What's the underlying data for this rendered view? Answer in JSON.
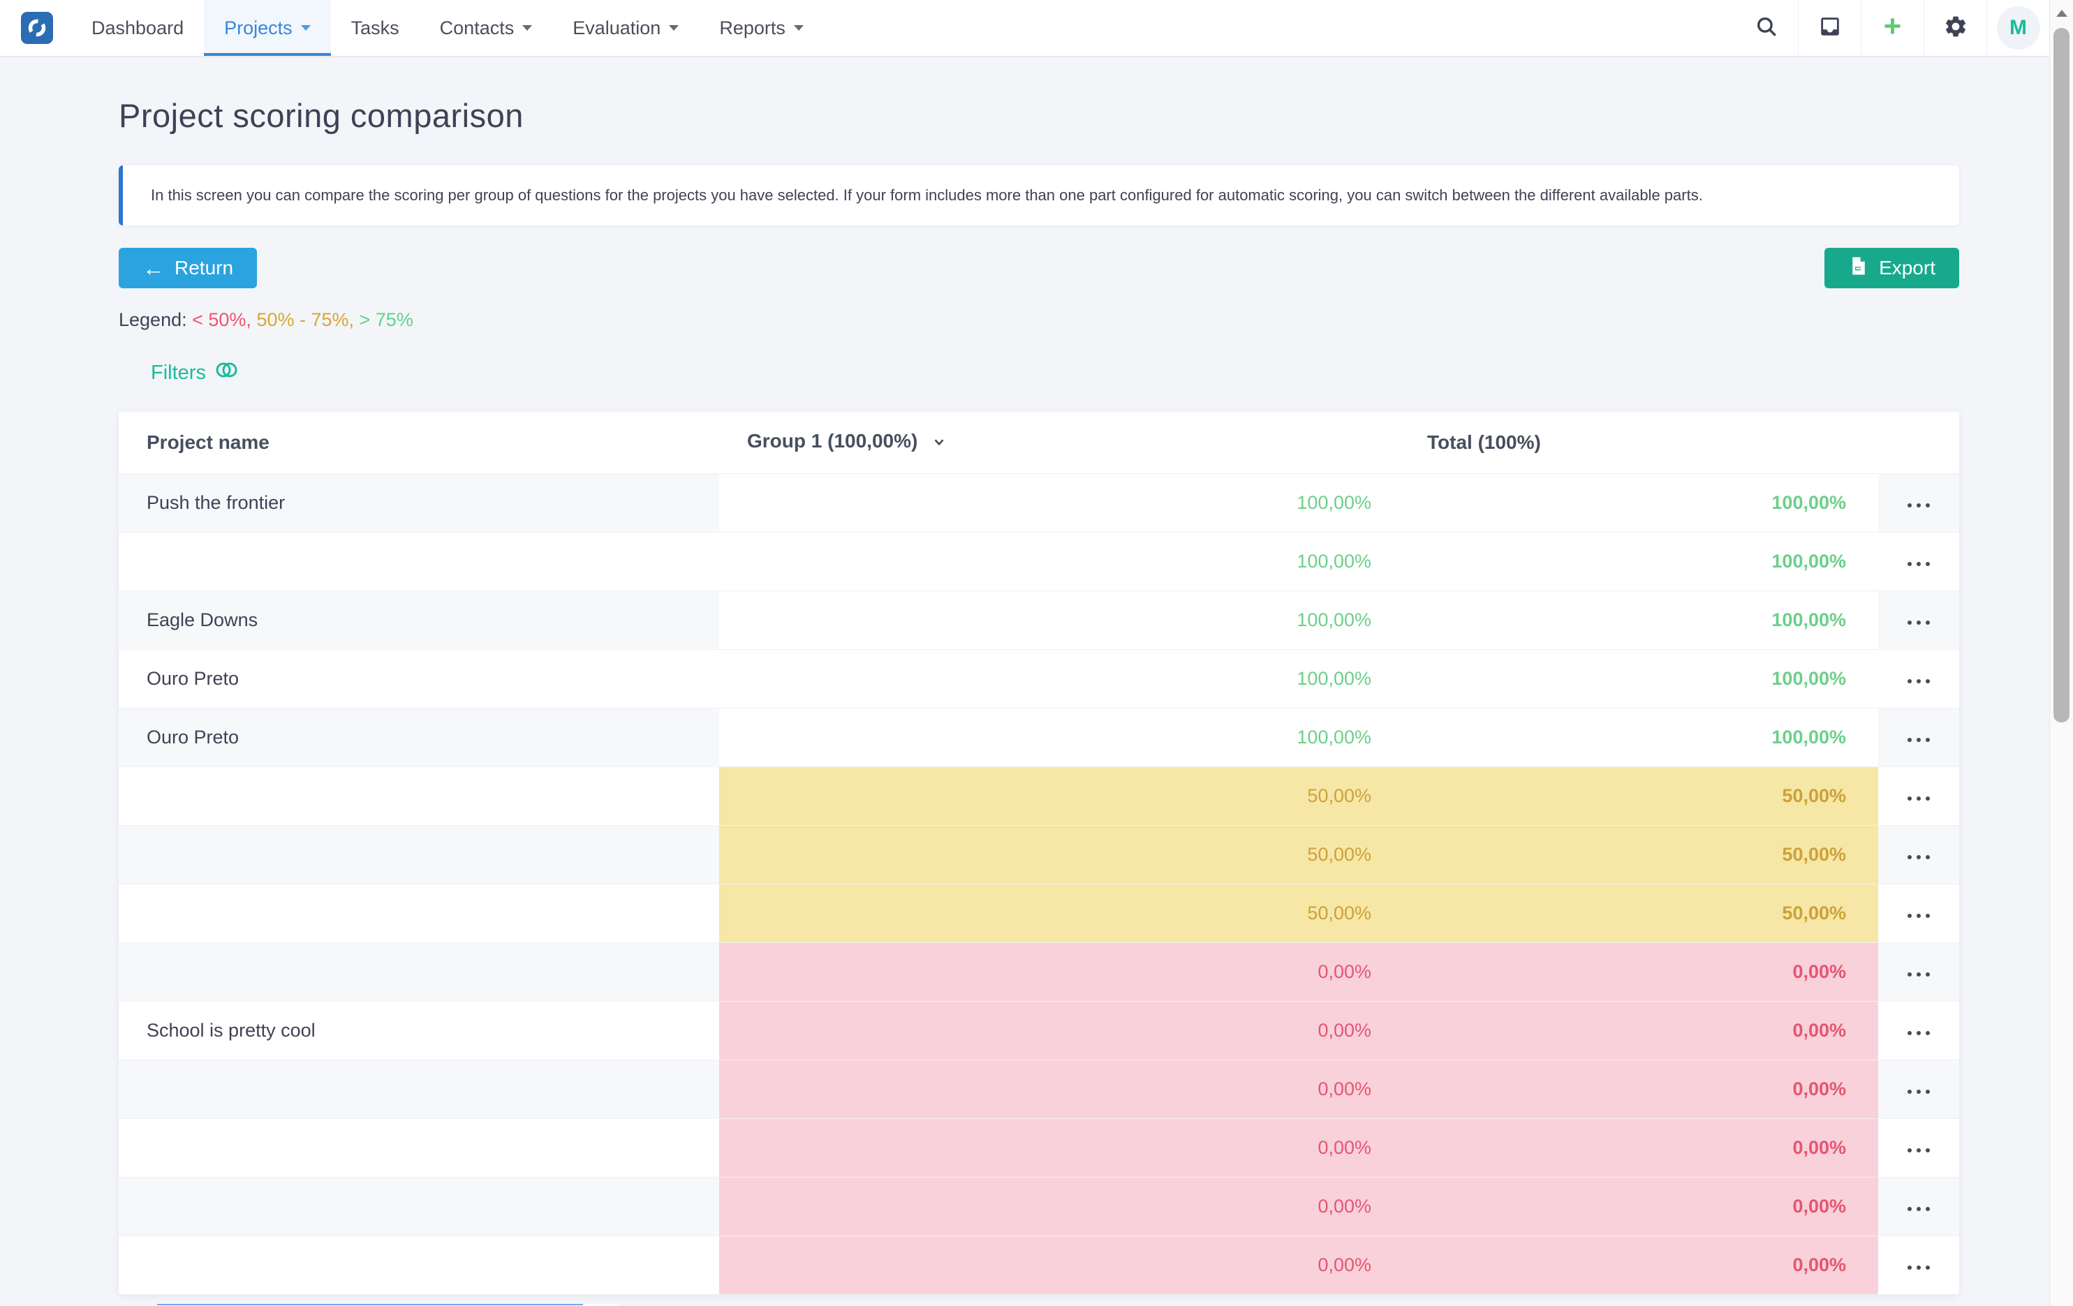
{
  "navbar": {
    "items": [
      {
        "label": "Dashboard",
        "caret": false,
        "active": false
      },
      {
        "label": "Projects",
        "caret": true,
        "active": true
      },
      {
        "label": "Tasks",
        "caret": false,
        "active": false
      },
      {
        "label": "Contacts",
        "caret": true,
        "active": false
      },
      {
        "label": "Evaluation",
        "caret": true,
        "active": false
      },
      {
        "label": "Reports",
        "caret": true,
        "active": false
      }
    ],
    "icons": [
      "search-icon",
      "inbox-icon",
      "add-icon",
      "settings-icon"
    ],
    "avatar_initial": "M"
  },
  "page": {
    "title": "Project scoring comparison",
    "info_text": "In this screen you can compare the scoring per group of questions for the projects you have selected. If your form includes more than one part configured for automatic scoring, you can switch between the different available parts.",
    "return_label": "Return",
    "export_label": "Export",
    "legend_label": "Legend:",
    "legend_items": [
      {
        "text": "< 50%",
        "color": "#f0536b"
      },
      {
        "text": "50% - 75%",
        "color": "#d9a730"
      },
      {
        "text": "> 75%",
        "color": "#5fd38c"
      }
    ],
    "filters_label": "Filters"
  },
  "table": {
    "headers": {
      "name": "Project name",
      "group": "Group 1 (100,00%)",
      "total": "Total (100%)"
    },
    "rows": [
      {
        "name": "Push the frontier",
        "group": "100,00%",
        "total": "100,00%",
        "level": "high"
      },
      {
        "name": "",
        "group": "100,00%",
        "total": "100,00%",
        "level": "high"
      },
      {
        "name": "Eagle Downs",
        "group": "100,00%",
        "total": "100,00%",
        "level": "high"
      },
      {
        "name": "Ouro Preto",
        "group": "100,00%",
        "total": "100,00%",
        "level": "high"
      },
      {
        "name": "Ouro Preto",
        "group": "100,00%",
        "total": "100,00%",
        "level": "high"
      },
      {
        "name": "",
        "group": "50,00%",
        "total": "50,00%",
        "level": "mid"
      },
      {
        "name": "",
        "group": "50,00%",
        "total": "50,00%",
        "level": "mid"
      },
      {
        "name": "",
        "group": "50,00%",
        "total": "50,00%",
        "level": "mid"
      },
      {
        "name": "",
        "group": "0,00%",
        "total": "0,00%",
        "level": "low"
      },
      {
        "name": "School is pretty cool",
        "group": "0,00%",
        "total": "0,00%",
        "level": "low"
      },
      {
        "name": "",
        "group": "0,00%",
        "total": "0,00%",
        "level": "low"
      },
      {
        "name": "",
        "group": "0,00%",
        "total": "0,00%",
        "level": "low"
      },
      {
        "name": "",
        "group": "0,00%",
        "total": "0,00%",
        "level": "low"
      },
      {
        "name": "",
        "group": "0,00%",
        "total": "0,00%",
        "level": "low"
      }
    ]
  },
  "colors": {
    "accent_blue": "#3787d7",
    "brand_blue": "#2b6cb4",
    "teal": "#1abc9c",
    "return_blue": "#2aa3df",
    "export_green": "#18a98c",
    "score_high": "#6bd089",
    "score_mid": "#cda137",
    "score_mid_bg": "#f6e7a7",
    "score_low": "#e65573",
    "score_low_bg": "#f9d1da"
  }
}
